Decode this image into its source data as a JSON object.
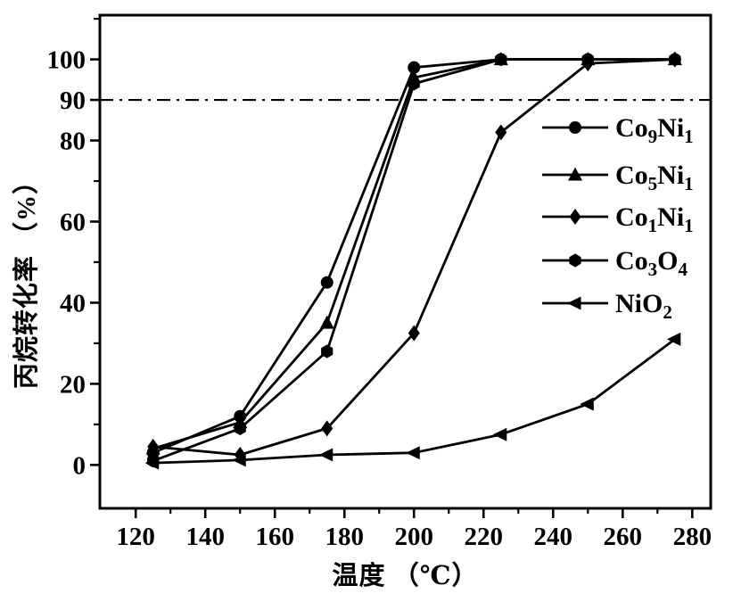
{
  "figure": {
    "background": "#ffffff",
    "ink_color": "#000000"
  },
  "chart_data": {
    "type": "line",
    "title": "",
    "xlabel": "温度 （℃）",
    "ylabel": "丙烷转化率 （%）",
    "grid": false,
    "legend_position": "inside-right",
    "x": [
      125,
      150,
      175,
      200,
      225,
      250,
      275
    ],
    "xlim": [
      109.7,
      285.3
    ],
    "ylim": [
      -10.7,
      110.9
    ],
    "x_ticks_major": [
      120,
      140,
      160,
      180,
      200,
      220,
      240,
      260,
      280
    ],
    "x_ticks_minor": [
      110,
      130,
      150,
      170,
      190,
      210,
      230,
      250,
      270
    ],
    "y_ticks_labeled": [
      0,
      20,
      40,
      60,
      80,
      90,
      100
    ],
    "y_ticks_minor": [
      10,
      30,
      50,
      70,
      110
    ],
    "reference_line": {
      "y": 90,
      "style": "dash-dot"
    },
    "series": [
      {
        "name": "Co9Ni1",
        "marker": "circle",
        "name_parts": [
          {
            "text": "Co"
          },
          {
            "text": "9",
            "sub": true
          },
          {
            "text": "Ni"
          },
          {
            "text": "1",
            "sub": true
          }
        ],
        "values": [
          3,
          12,
          45,
          98,
          100,
          100,
          100
        ]
      },
      {
        "name": "Co5Ni1",
        "marker": "triangle-up",
        "name_parts": [
          {
            "text": "Co"
          },
          {
            "text": "5",
            "sub": true
          },
          {
            "text": "Ni"
          },
          {
            "text": "1",
            "sub": true
          }
        ],
        "values": [
          4,
          10.5,
          35,
          95.5,
          100,
          100,
          100
        ]
      },
      {
        "name": "Co1Ni1",
        "marker": "diamond",
        "name_parts": [
          {
            "text": "Co"
          },
          {
            "text": "1",
            "sub": true
          },
          {
            "text": "Ni"
          },
          {
            "text": "1",
            "sub": true
          }
        ],
        "values": [
          4.5,
          2.5,
          9,
          32.5,
          82,
          99,
          100
        ]
      },
      {
        "name": "Co3O4",
        "marker": "hexagon",
        "name_parts": [
          {
            "text": "Co"
          },
          {
            "text": "3",
            "sub": true
          },
          {
            "text": "O"
          },
          {
            "text": "4",
            "sub": true
          }
        ],
        "values": [
          1,
          9,
          28,
          94,
          100,
          100,
          100
        ]
      },
      {
        "name": "NiO2",
        "marker": "triangle-left",
        "name_parts": [
          {
            "text": "NiO"
          },
          {
            "text": "2",
            "sub": true
          }
        ],
        "values": [
          0.5,
          1.2,
          2.5,
          3,
          7.5,
          15,
          31
        ]
      }
    ]
  }
}
